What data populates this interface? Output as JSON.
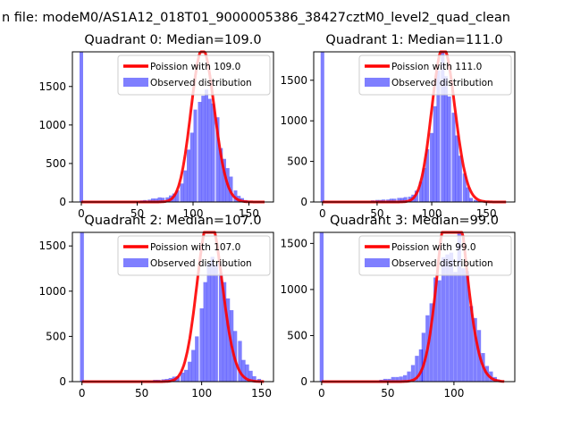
{
  "suptitle": "n file: modeM0/AS1A12_018T01_9000005386_38427cztM0_level2_quad_clean",
  "colors": {
    "observed": "#0000ff",
    "poisson": "#ff0000",
    "axes": "#000000"
  },
  "chart_data": [
    {
      "type": "bar",
      "title": "Quadrant 0: Median=109.0",
      "xticks": [
        0,
        50,
        100,
        150
      ],
      "yticks": [
        0,
        500,
        1000,
        1500
      ],
      "xlim": [
        -8,
        172
      ],
      "ylim": [
        0,
        1950
      ],
      "legend": [
        "Poission with 109.0",
        "Observed distribution"
      ],
      "legend_position": "upper right",
      "mean": 109,
      "spike": {
        "x": 0,
        "width": 3.2,
        "count": 1950
      },
      "bin_width": 3.2,
      "bins": [
        [
          54,
          20
        ],
        [
          57,
          25
        ],
        [
          61,
          30
        ],
        [
          64,
          45
        ],
        [
          67,
          45
        ],
        [
          70,
          60
        ],
        [
          73,
          55
        ],
        [
          77,
          60
        ],
        [
          80,
          85
        ],
        [
          83,
          110
        ],
        [
          86,
          150
        ],
        [
          90,
          240
        ],
        [
          93,
          410
        ],
        [
          96,
          680
        ],
        [
          99,
          900
        ],
        [
          102,
          1200
        ],
        [
          106,
          1300
        ],
        [
          109,
          1380
        ],
        [
          112,
          1460
        ],
        [
          115,
          1340
        ],
        [
          118,
          1280
        ],
        [
          122,
          1100
        ],
        [
          125,
          700
        ],
        [
          128,
          560
        ],
        [
          131,
          440
        ],
        [
          134,
          330
        ],
        [
          138,
          150
        ],
        [
          141,
          80
        ],
        [
          144,
          50
        ],
        [
          147,
          25
        ],
        [
          150,
          10
        ]
      ]
    },
    {
      "type": "bar",
      "title": "Quadrant 1: Median=111.0",
      "xticks": [
        0,
        50,
        100,
        150
      ],
      "yticks": [
        0,
        500,
        1000,
        1500
      ],
      "xlim": [
        -8,
        176
      ],
      "ylim": [
        0,
        1850
      ],
      "legend": [
        "Poission with 111.0",
        "Observed distribution"
      ],
      "legend_position": "upper right",
      "mean": 111,
      "spike": {
        "x": 0,
        "width": 3.3,
        "count": 1850
      },
      "bin_width": 3.3,
      "bins": [
        [
          46,
          20
        ],
        [
          50,
          25
        ],
        [
          53,
          25
        ],
        [
          56,
          30
        ],
        [
          60,
          30
        ],
        [
          63,
          40
        ],
        [
          66,
          40
        ],
        [
          70,
          50
        ],
        [
          73,
          50
        ],
        [
          76,
          60
        ],
        [
          80,
          65
        ],
        [
          83,
          90
        ],
        [
          86,
          140
        ],
        [
          90,
          250
        ],
        [
          93,
          420
        ],
        [
          96,
          650
        ],
        [
          100,
          850
        ],
        [
          103,
          1180
        ],
        [
          106,
          1620
        ],
        [
          110,
          1850
        ],
        [
          113,
          1550
        ],
        [
          116,
          1300
        ],
        [
          120,
          1100
        ],
        [
          123,
          820
        ],
        [
          126,
          570
        ],
        [
          130,
          350
        ],
        [
          133,
          180
        ],
        [
          136,
          50
        ],
        [
          140,
          25
        ],
        [
          143,
          15
        ],
        [
          146,
          5
        ]
      ]
    },
    {
      "type": "bar",
      "title": "Quadrant 2: Median=107.0",
      "xticks": [
        0,
        50,
        100,
        150
      ],
      "yticks": [
        0,
        500,
        1000,
        1500
      ],
      "xlim": [
        -8,
        160
      ],
      "ylim": [
        0,
        1650
      ],
      "legend": [
        "Poission with 107.0",
        "Observed distribution"
      ],
      "legend_position": "upper right",
      "mean": 107,
      "spike": {
        "x": 0,
        "width": 3.2,
        "count": 1650
      },
      "bin_width": 3.2,
      "bins": [
        [
          61,
          20
        ],
        [
          64,
          20
        ],
        [
          68,
          25
        ],
        [
          71,
          30
        ],
        [
          74,
          40
        ],
        [
          77,
          55
        ],
        [
          80,
          60
        ],
        [
          84,
          100
        ],
        [
          87,
          130
        ],
        [
          90,
          220
        ],
        [
          93,
          350
        ],
        [
          96,
          500
        ],
        [
          100,
          810
        ],
        [
          103,
          1100
        ],
        [
          106,
          1310
        ],
        [
          109,
          1380
        ],
        [
          112,
          1300
        ],
        [
          116,
          1200
        ],
        [
          119,
          1100
        ],
        [
          122,
          920
        ],
        [
          125,
          790
        ],
        [
          128,
          560
        ],
        [
          132,
          450
        ],
        [
          135,
          240
        ],
        [
          138,
          190
        ],
        [
          141,
          120
        ],
        [
          144,
          60
        ],
        [
          148,
          30
        ]
      ]
    },
    {
      "type": "bar",
      "title": "Quadrant 3: Median=99.0",
      "xticks": [
        0,
        50,
        100
      ],
      "yticks": [
        0,
        500,
        1000,
        1500
      ],
      "xlim": [
        -6,
        146
      ],
      "ylim": [
        0,
        1620
      ],
      "legend": [
        "Poission with 99.0",
        "Observed distribution"
      ],
      "legend_position": "upper right",
      "mean": 99,
      "spike": {
        "x": 0,
        "width": 2.9,
        "count": 1620
      },
      "bin_width": 2.9,
      "bins": [
        [
          45,
          20
        ],
        [
          48,
          30
        ],
        [
          51,
          30
        ],
        [
          54,
          50
        ],
        [
          57,
          50
        ],
        [
          60,
          55
        ],
        [
          63,
          70
        ],
        [
          66,
          110
        ],
        [
          69,
          180
        ],
        [
          72,
          280
        ],
        [
          75,
          350
        ],
        [
          77,
          530
        ],
        [
          80,
          720
        ],
        [
          83,
          850
        ],
        [
          86,
          1130
        ],
        [
          89,
          1100
        ],
        [
          92,
          1350
        ],
        [
          95,
          1380
        ],
        [
          98,
          1400
        ],
        [
          101,
          1190
        ],
        [
          104,
          1620
        ],
        [
          107,
          1230
        ],
        [
          110,
          1200
        ],
        [
          113,
          820
        ],
        [
          116,
          690
        ],
        [
          119,
          560
        ],
        [
          122,
          310
        ],
        [
          125,
          170
        ],
        [
          128,
          110
        ],
        [
          131,
          50
        ],
        [
          133,
          25
        ]
      ]
    }
  ]
}
